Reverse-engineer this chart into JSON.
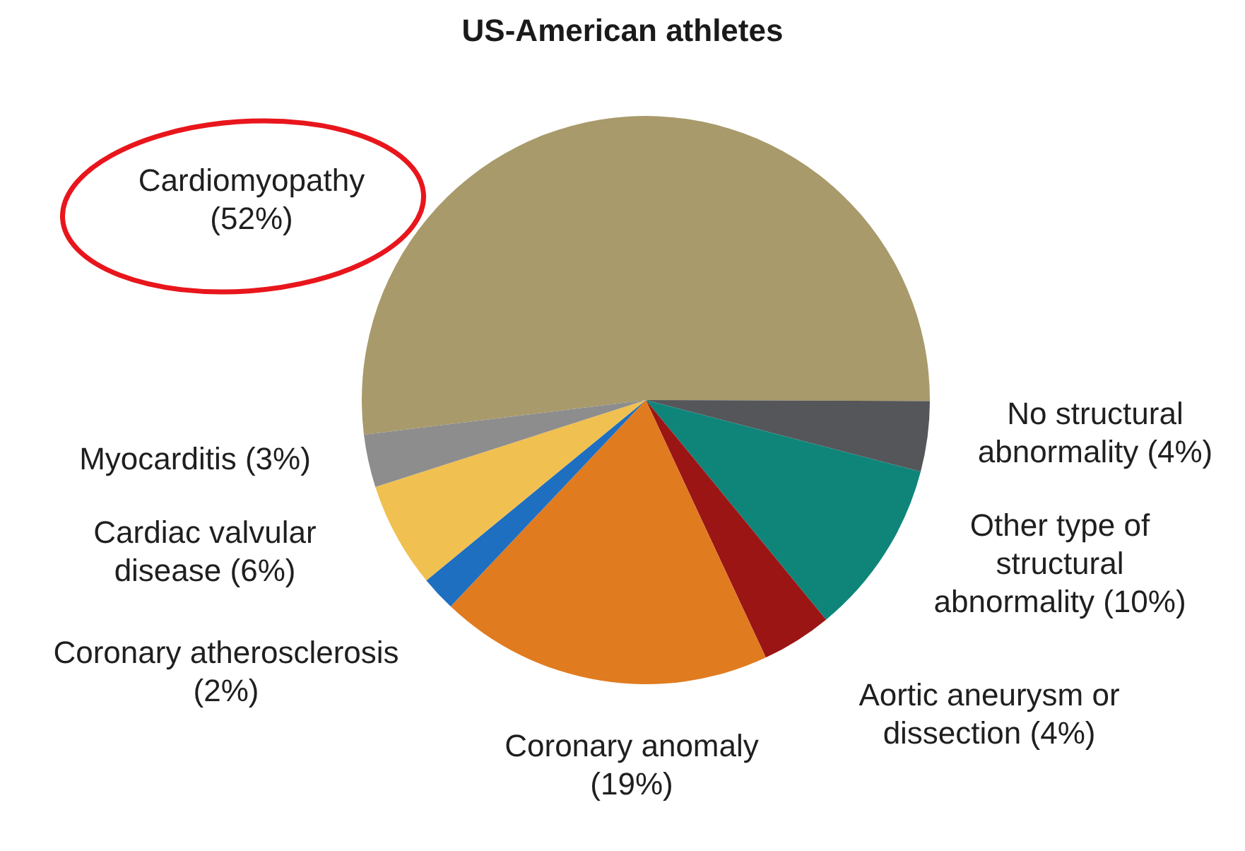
{
  "chart_data": {
    "type": "pie",
    "title": "US-American athletes",
    "categories": [
      "Cardiomyopathy (52%)",
      "No structural abnormality (4%)",
      "Other type of structural abnormality (10%)",
      "Aortic aneurysm or dissection (4%)",
      "Coronary anomaly (19%)",
      "Coronary atherosclerosis (2%)",
      "Cardiac valvular disease (6%)",
      "Myocarditis (3%)"
    ],
    "values": [
      52,
      4,
      10,
      4,
      19,
      2,
      6,
      3
    ],
    "colors": [
      "#a89a6a",
      "#55565a",
      "#0f857a",
      "#9b1515",
      "#e07b20",
      "#1f6fc0",
      "#f0c050",
      "#8d8d8d"
    ],
    "legend": false
  }
}
